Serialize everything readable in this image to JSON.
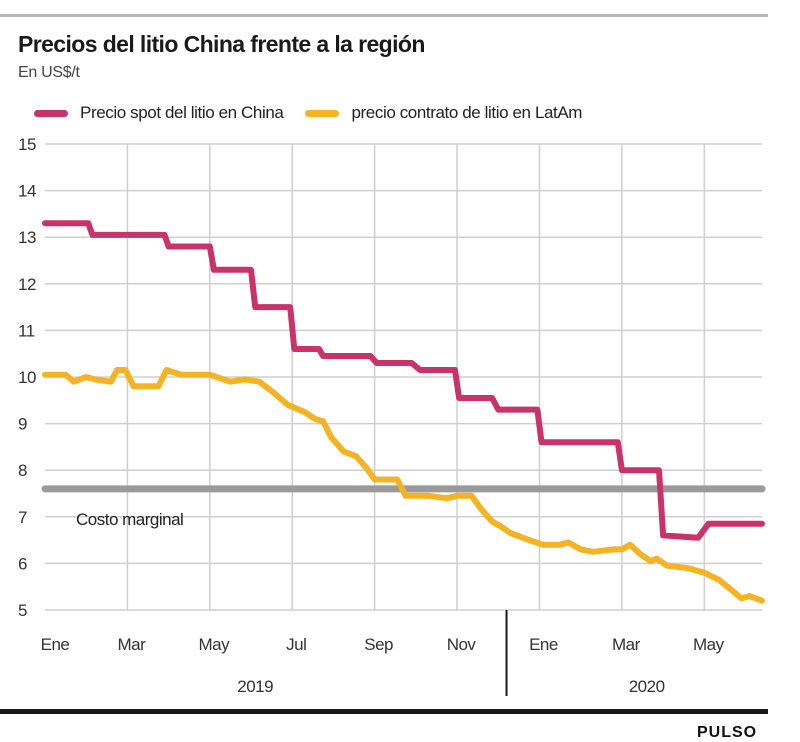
{
  "header": {
    "title": "Precios del litio China frente a la región",
    "subtitle": "En US$/t"
  },
  "footer": {
    "brand": "PULSO"
  },
  "chart_data": {
    "type": "line",
    "title": "Precios del litio China frente a la región",
    "subtitle": "En US$/t",
    "xlabel": "",
    "ylabel": "En US$/t",
    "ylim": [
      5,
      15
    ],
    "yticks": [
      5,
      6,
      7,
      8,
      9,
      10,
      11,
      12,
      13,
      14,
      15
    ],
    "xlim_months": [
      0,
      17.4
    ],
    "x_unit": "months since Ene 2019",
    "xticks": [
      {
        "label": "Ene",
        "month": 0
      },
      {
        "label": "Mar",
        "month": 2
      },
      {
        "label": "May",
        "month": 4
      },
      {
        "label": "Jul",
        "month": 6
      },
      {
        "label": "Sep",
        "month": 8
      },
      {
        "label": "Nov",
        "month": 10
      },
      {
        "label": "Ene",
        "month": 12
      },
      {
        "label": "Mar",
        "month": 14
      },
      {
        "label": "May",
        "month": 16
      }
    ],
    "year_labels": [
      {
        "label": "2019",
        "center_month": 5.1
      },
      {
        "label": "2020",
        "center_month": 14.6
      }
    ],
    "year_divider_month": 11.2,
    "grid": true,
    "legend_position": "top",
    "series": [
      {
        "name": "Precio spot del litio en China",
        "color": "#c8336a",
        "points": [
          [
            0,
            13.3
          ],
          [
            1.05,
            13.3
          ],
          [
            1.15,
            13.05
          ],
          [
            2.9,
            13.05
          ],
          [
            3.0,
            12.8
          ],
          [
            4.0,
            12.8
          ],
          [
            4.1,
            12.3
          ],
          [
            5.0,
            12.3
          ],
          [
            5.1,
            11.5
          ],
          [
            5.95,
            11.5
          ],
          [
            6.05,
            10.6
          ],
          [
            6.65,
            10.6
          ],
          [
            6.75,
            10.45
          ],
          [
            7.9,
            10.45
          ],
          [
            8.05,
            10.3
          ],
          [
            8.9,
            10.3
          ],
          [
            9.1,
            10.15
          ],
          [
            9.95,
            10.15
          ],
          [
            10.05,
            9.55
          ],
          [
            10.85,
            9.55
          ],
          [
            11.0,
            9.3
          ],
          [
            11.95,
            9.3
          ],
          [
            12.05,
            8.6
          ],
          [
            13.9,
            8.6
          ],
          [
            14.0,
            8.0
          ],
          [
            14.9,
            8.0
          ],
          [
            15.0,
            6.6
          ],
          [
            15.85,
            6.55
          ],
          [
            16.1,
            6.85
          ],
          [
            17.4,
            6.85
          ]
        ]
      },
      {
        "name": "precio contrato de litio en LatAm",
        "color": "#f2b324",
        "points": [
          [
            0,
            10.05
          ],
          [
            0.5,
            10.05
          ],
          [
            0.7,
            9.9
          ],
          [
            1.0,
            10.0
          ],
          [
            1.2,
            9.95
          ],
          [
            1.6,
            9.9
          ],
          [
            1.75,
            10.15
          ],
          [
            1.95,
            10.15
          ],
          [
            2.15,
            9.8
          ],
          [
            2.75,
            9.8
          ],
          [
            2.95,
            10.15
          ],
          [
            3.3,
            10.05
          ],
          [
            4.0,
            10.05
          ],
          [
            4.5,
            9.9
          ],
          [
            4.85,
            9.95
          ],
          [
            5.2,
            9.9
          ],
          [
            5.5,
            9.7
          ],
          [
            5.9,
            9.4
          ],
          [
            6.3,
            9.25
          ],
          [
            6.55,
            9.1
          ],
          [
            6.75,
            9.05
          ],
          [
            6.95,
            8.7
          ],
          [
            7.25,
            8.4
          ],
          [
            7.55,
            8.3
          ],
          [
            7.8,
            8.05
          ],
          [
            8.0,
            7.8
          ],
          [
            8.25,
            7.8
          ],
          [
            8.55,
            7.8
          ],
          [
            8.75,
            7.45
          ],
          [
            9.3,
            7.45
          ],
          [
            9.75,
            7.4
          ],
          [
            10.0,
            7.45
          ],
          [
            10.35,
            7.45
          ],
          [
            10.6,
            7.15
          ],
          [
            10.85,
            6.9
          ],
          [
            11.05,
            6.8
          ],
          [
            11.3,
            6.65
          ],
          [
            11.75,
            6.5
          ],
          [
            12.1,
            6.4
          ],
          [
            12.5,
            6.4
          ],
          [
            12.7,
            6.45
          ],
          [
            13.0,
            6.3
          ],
          [
            13.3,
            6.25
          ],
          [
            13.8,
            6.3
          ],
          [
            14.0,
            6.3
          ],
          [
            14.2,
            6.4
          ],
          [
            14.45,
            6.2
          ],
          [
            14.7,
            6.05
          ],
          [
            14.85,
            6.1
          ],
          [
            15.1,
            5.95
          ],
          [
            15.6,
            5.9
          ],
          [
            16.0,
            5.8
          ],
          [
            16.35,
            5.65
          ],
          [
            16.7,
            5.4
          ],
          [
            16.9,
            5.25
          ],
          [
            17.1,
            5.3
          ],
          [
            17.4,
            5.2
          ]
        ]
      }
    ],
    "reference_lines": [
      {
        "name": "Costo marginal",
        "value": 7.6,
        "color": "#9a9a9a",
        "label": "Costo marginal"
      }
    ]
  }
}
